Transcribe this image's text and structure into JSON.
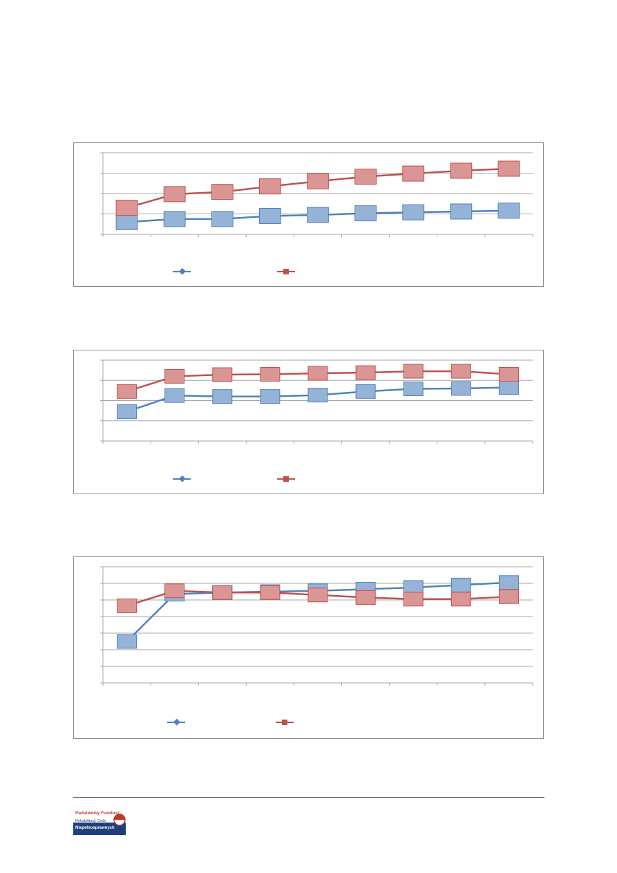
{
  "colors": {
    "series_a": "#4F81BD",
    "series_a_fill": "#95B3D7",
    "series_b": "#C0504D",
    "series_b_fill": "#DA9694",
    "grid": "#A6A6A6",
    "frame": "#8C8C8C"
  },
  "chart_data": [
    {
      "type": "line",
      "categories": [
        "",
        "",
        "",
        "",
        "",
        "",
        "",
        "",
        ""
      ],
      "ylim": [
        0,
        4
      ],
      "grid": true,
      "legend": "bottom",
      "series": [
        {
          "values": [
            0.6,
            0.75,
            0.75,
            0.9,
            0.95,
            1.03,
            1.08,
            1.12,
            1.16
          ],
          "marker": "square"
        },
        {
          "values": [
            1.3,
            1.97,
            2.08,
            2.35,
            2.6,
            2.83,
            2.98,
            3.12,
            3.22
          ],
          "marker": "square"
        }
      ]
    },
    {
      "type": "line",
      "categories": [
        "",
        "",
        "",
        "",
        "",
        "",
        "",
        "",
        ""
      ],
      "ylim": [
        0,
        4
      ],
      "grid": true,
      "legend": "bottom",
      "series": [
        {
          "values": [
            1.45,
            2.25,
            2.2,
            2.2,
            2.27,
            2.45,
            2.58,
            2.6,
            2.65
          ],
          "marker": "square"
        },
        {
          "values": [
            2.45,
            3.2,
            3.28,
            3.3,
            3.35,
            3.38,
            3.45,
            3.45,
            3.3
          ],
          "marker": "square"
        }
      ]
    },
    {
      "type": "line",
      "categories": [
        "",
        "",
        "",
        "",
        "",
        "",
        "",
        "",
        ""
      ],
      "ylim": [
        0,
        7
      ],
      "grid": true,
      "legend": "bottom",
      "series": [
        {
          "values": [
            2.5,
            5.35,
            5.45,
            5.5,
            5.55,
            5.65,
            5.75,
            5.9,
            6.05
          ],
          "marker": "square"
        },
        {
          "values": [
            4.65,
            5.55,
            5.45,
            5.45,
            5.3,
            5.15,
            5.05,
            5.05,
            5.2
          ],
          "marker": "square"
        }
      ]
    }
  ],
  "footer": {
    "logo_text_line1": "Państwowy Fundusz",
    "logo_text_line2": "Rehabilitacji Osób",
    "logo_text_line3": "Niepełnosprawnych"
  }
}
